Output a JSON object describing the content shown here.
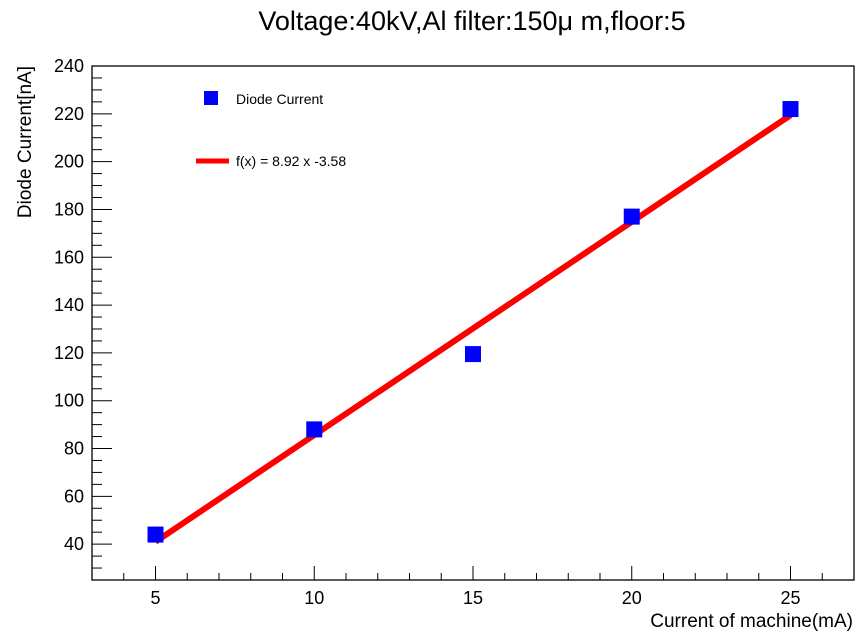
{
  "chart_data": {
    "type": "scatter",
    "title": "Voltage:40kV,Al filter:150μ m,floor:5",
    "xlabel": "Current of machine(mA)",
    "ylabel": "Diode Current[nA]",
    "xlim": [
      3,
      27
    ],
    "ylim": [
      25,
      240
    ],
    "x_ticks": [
      5,
      10,
      15,
      20,
      25
    ],
    "y_ticks": [
      40,
      60,
      80,
      100,
      120,
      140,
      160,
      180,
      200,
      220,
      240
    ],
    "grid": false,
    "legend_position": "top-left",
    "series": [
      {
        "name": "Diode Current",
        "kind": "points",
        "marker": "square",
        "color": "#0000ff",
        "x": [
          5,
          10,
          15,
          20,
          25
        ],
        "y": [
          44,
          88,
          119.5,
          177,
          222
        ]
      },
      {
        "name": "f(x) = 8.92 x -3.58",
        "kind": "fit-line",
        "color": "#ff0000",
        "slope": 8.92,
        "intercept": -3.58,
        "x_range": [
          5,
          25
        ]
      }
    ]
  }
}
